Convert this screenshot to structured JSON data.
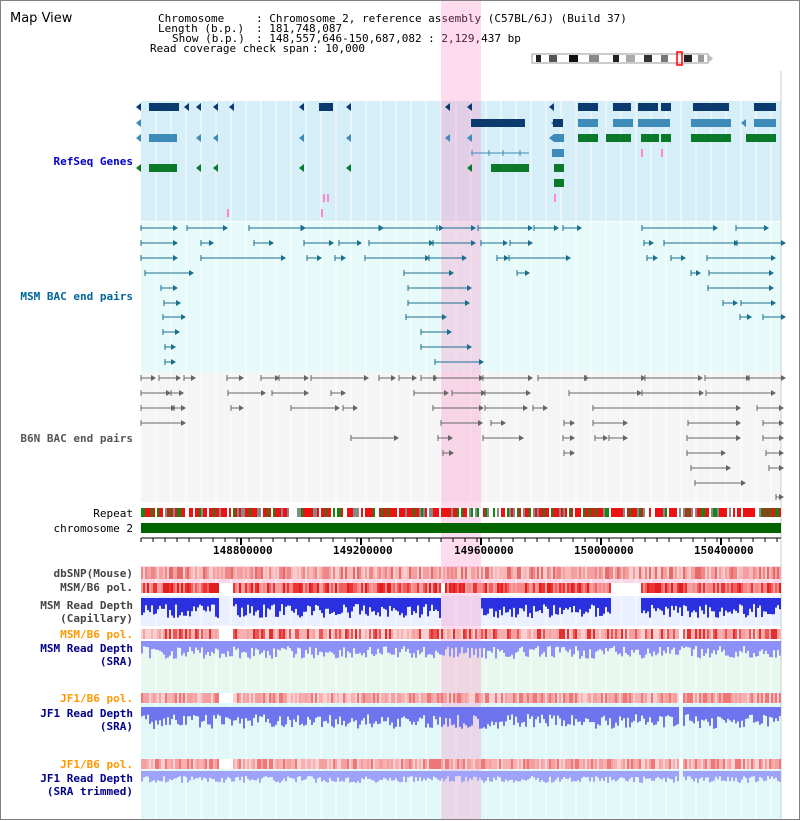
{
  "window": {
    "title": "Map View"
  },
  "header": {
    "chromosome_key": "Chromosome",
    "chromosome_val": ": Chromosome 2, reference assembly (C57BL/6J) (Build 37)",
    "length_key": "Length (b.p.)",
    "length_val": ": 181,748,087",
    "show_key": "Show (b.p.)",
    "show_val": ": 148,557,646-150,687,082 : 2,129,437 bp",
    "coverage_key": "Read coverage check span",
    "coverage_val": ": 10,000"
  },
  "colors": {
    "refseq_label": "#0000cc",
    "msm_label": "#006699",
    "b6n_label": "#555555",
    "pol_orange": "#ff9900",
    "depth_blue": "#00008b",
    "highlight": "#f8d8f0",
    "chromosome": "#006400"
  },
  "tracks": {
    "refseq": "RefSeq Genes",
    "msm_bac": "MSM BAC end pairs",
    "b6n_bac": "B6N BAC end pairs",
    "repeat": "Repeat",
    "chromosome": "chromosome 2",
    "dbsnp": "dbSNP(Mouse)",
    "msm_b6_pol_1": "MSM/B6 pol.",
    "msm_read_depth_cap": "MSM Read Depth",
    "msm_read_depth_cap_sub": "(Capillary)",
    "msm_b6_pol_2": "MSM/B6 pol.",
    "msm_read_depth_sra": "MSM Read Depth",
    "msm_read_depth_sra_sub": "(SRA)",
    "jf1_b6_pol_1": "JF1/B6 pol.",
    "jf1_read_depth_sra": "JF1 Read Depth",
    "jf1_read_depth_sra_sub": "(SRA)",
    "jf1_b6_pol_2": "JF1/B6 pol.",
    "jf1_read_depth_trim": "JF1 Read Depth",
    "jf1_read_depth_trim_sub": "(SRA trimmed)"
  },
  "axis": {
    "ticks": [
      "148800000",
      "149200000",
      "149600000",
      "150000000",
      "150400000"
    ]
  }
}
